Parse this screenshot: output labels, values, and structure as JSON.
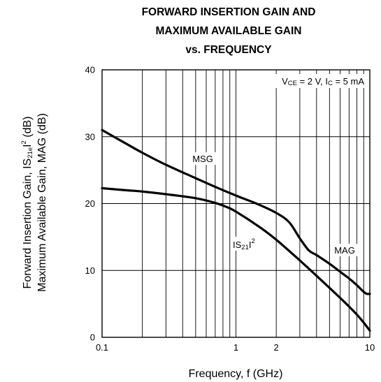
{
  "chart_data": {
    "type": "line",
    "title": [
      "FORWARD INSERTION GAIN AND",
      "MAXIMUM AVAILABLE GAIN",
      "vs. FREQUENCY"
    ],
    "xlabel": "Frequency, f (GHz)",
    "ylabel": {
      "line1": {
        "pre": "Forward Insertion Gain, IS",
        "sub": "21e",
        "mid": "I",
        "sup": "2",
        "post": " (dB)"
      },
      "line2": "Maximum Available Gain, MAG (dB)"
    },
    "x_scale": "log",
    "xlim": [
      0.1,
      10
    ],
    "ylim": [
      0,
      40
    ],
    "x_ticks": [
      {
        "value": 0.1,
        "label": "0.1"
      },
      {
        "value": 1,
        "label": "1"
      },
      {
        "value": 2,
        "label": "2"
      },
      {
        "value": 10,
        "label": "10"
      }
    ],
    "y_ticks": [
      {
        "value": 0,
        "label": "0"
      },
      {
        "value": 10,
        "label": "10"
      },
      {
        "value": 20,
        "label": "20"
      },
      {
        "value": 30,
        "label": "30"
      },
      {
        "value": 40,
        "label": "40"
      }
    ],
    "grid": true,
    "condition": {
      "v": "V",
      "v_sub": "CE",
      "v_val": " = 2 V, I",
      "i_sub": "C",
      "i_val": " = 5 mA"
    },
    "series": [
      {
        "name": "MSG / MAG",
        "x": [
          0.1,
          0.15,
          0.2,
          0.3,
          0.5,
          0.7,
          1.0,
          1.5,
          2.0,
          2.5,
          3.0,
          3.5,
          4.0,
          5.0,
          6.0,
          7.0,
          8.0,
          9.0,
          9.5,
          10.0
        ],
        "y": [
          31.0,
          29.0,
          27.6,
          25.8,
          23.8,
          22.5,
          21.2,
          19.8,
          18.6,
          17.2,
          14.8,
          13.0,
          12.3,
          11.0,
          9.8,
          8.8,
          7.8,
          6.8,
          6.5,
          6.5
        ]
      },
      {
        "name": "|S21|2",
        "x": [
          0.1,
          0.15,
          0.2,
          0.3,
          0.5,
          0.7,
          0.85,
          1.0,
          1.5,
          2.0,
          3.0,
          4.0,
          5.0,
          6.0,
          7.0,
          8.0,
          9.0,
          10.0
        ],
        "y": [
          22.3,
          22.0,
          21.8,
          21.4,
          20.8,
          20.1,
          19.5,
          18.8,
          16.5,
          14.6,
          11.5,
          9.2,
          7.4,
          5.9,
          4.6,
          3.4,
          2.2,
          1.0
        ]
      }
    ],
    "annotations": [
      {
        "id": "msg",
        "text": "MSG",
        "x": 0.7,
        "y": 25.8
      },
      {
        "id": "s21",
        "pre": "IS",
        "sub": "21",
        "mid": "I",
        "sup": "2",
        "x": 1.75,
        "y": 13.7
      },
      {
        "id": "mag",
        "text": "MAG",
        "x": 5.4,
        "y": 12.6
      }
    ]
  }
}
